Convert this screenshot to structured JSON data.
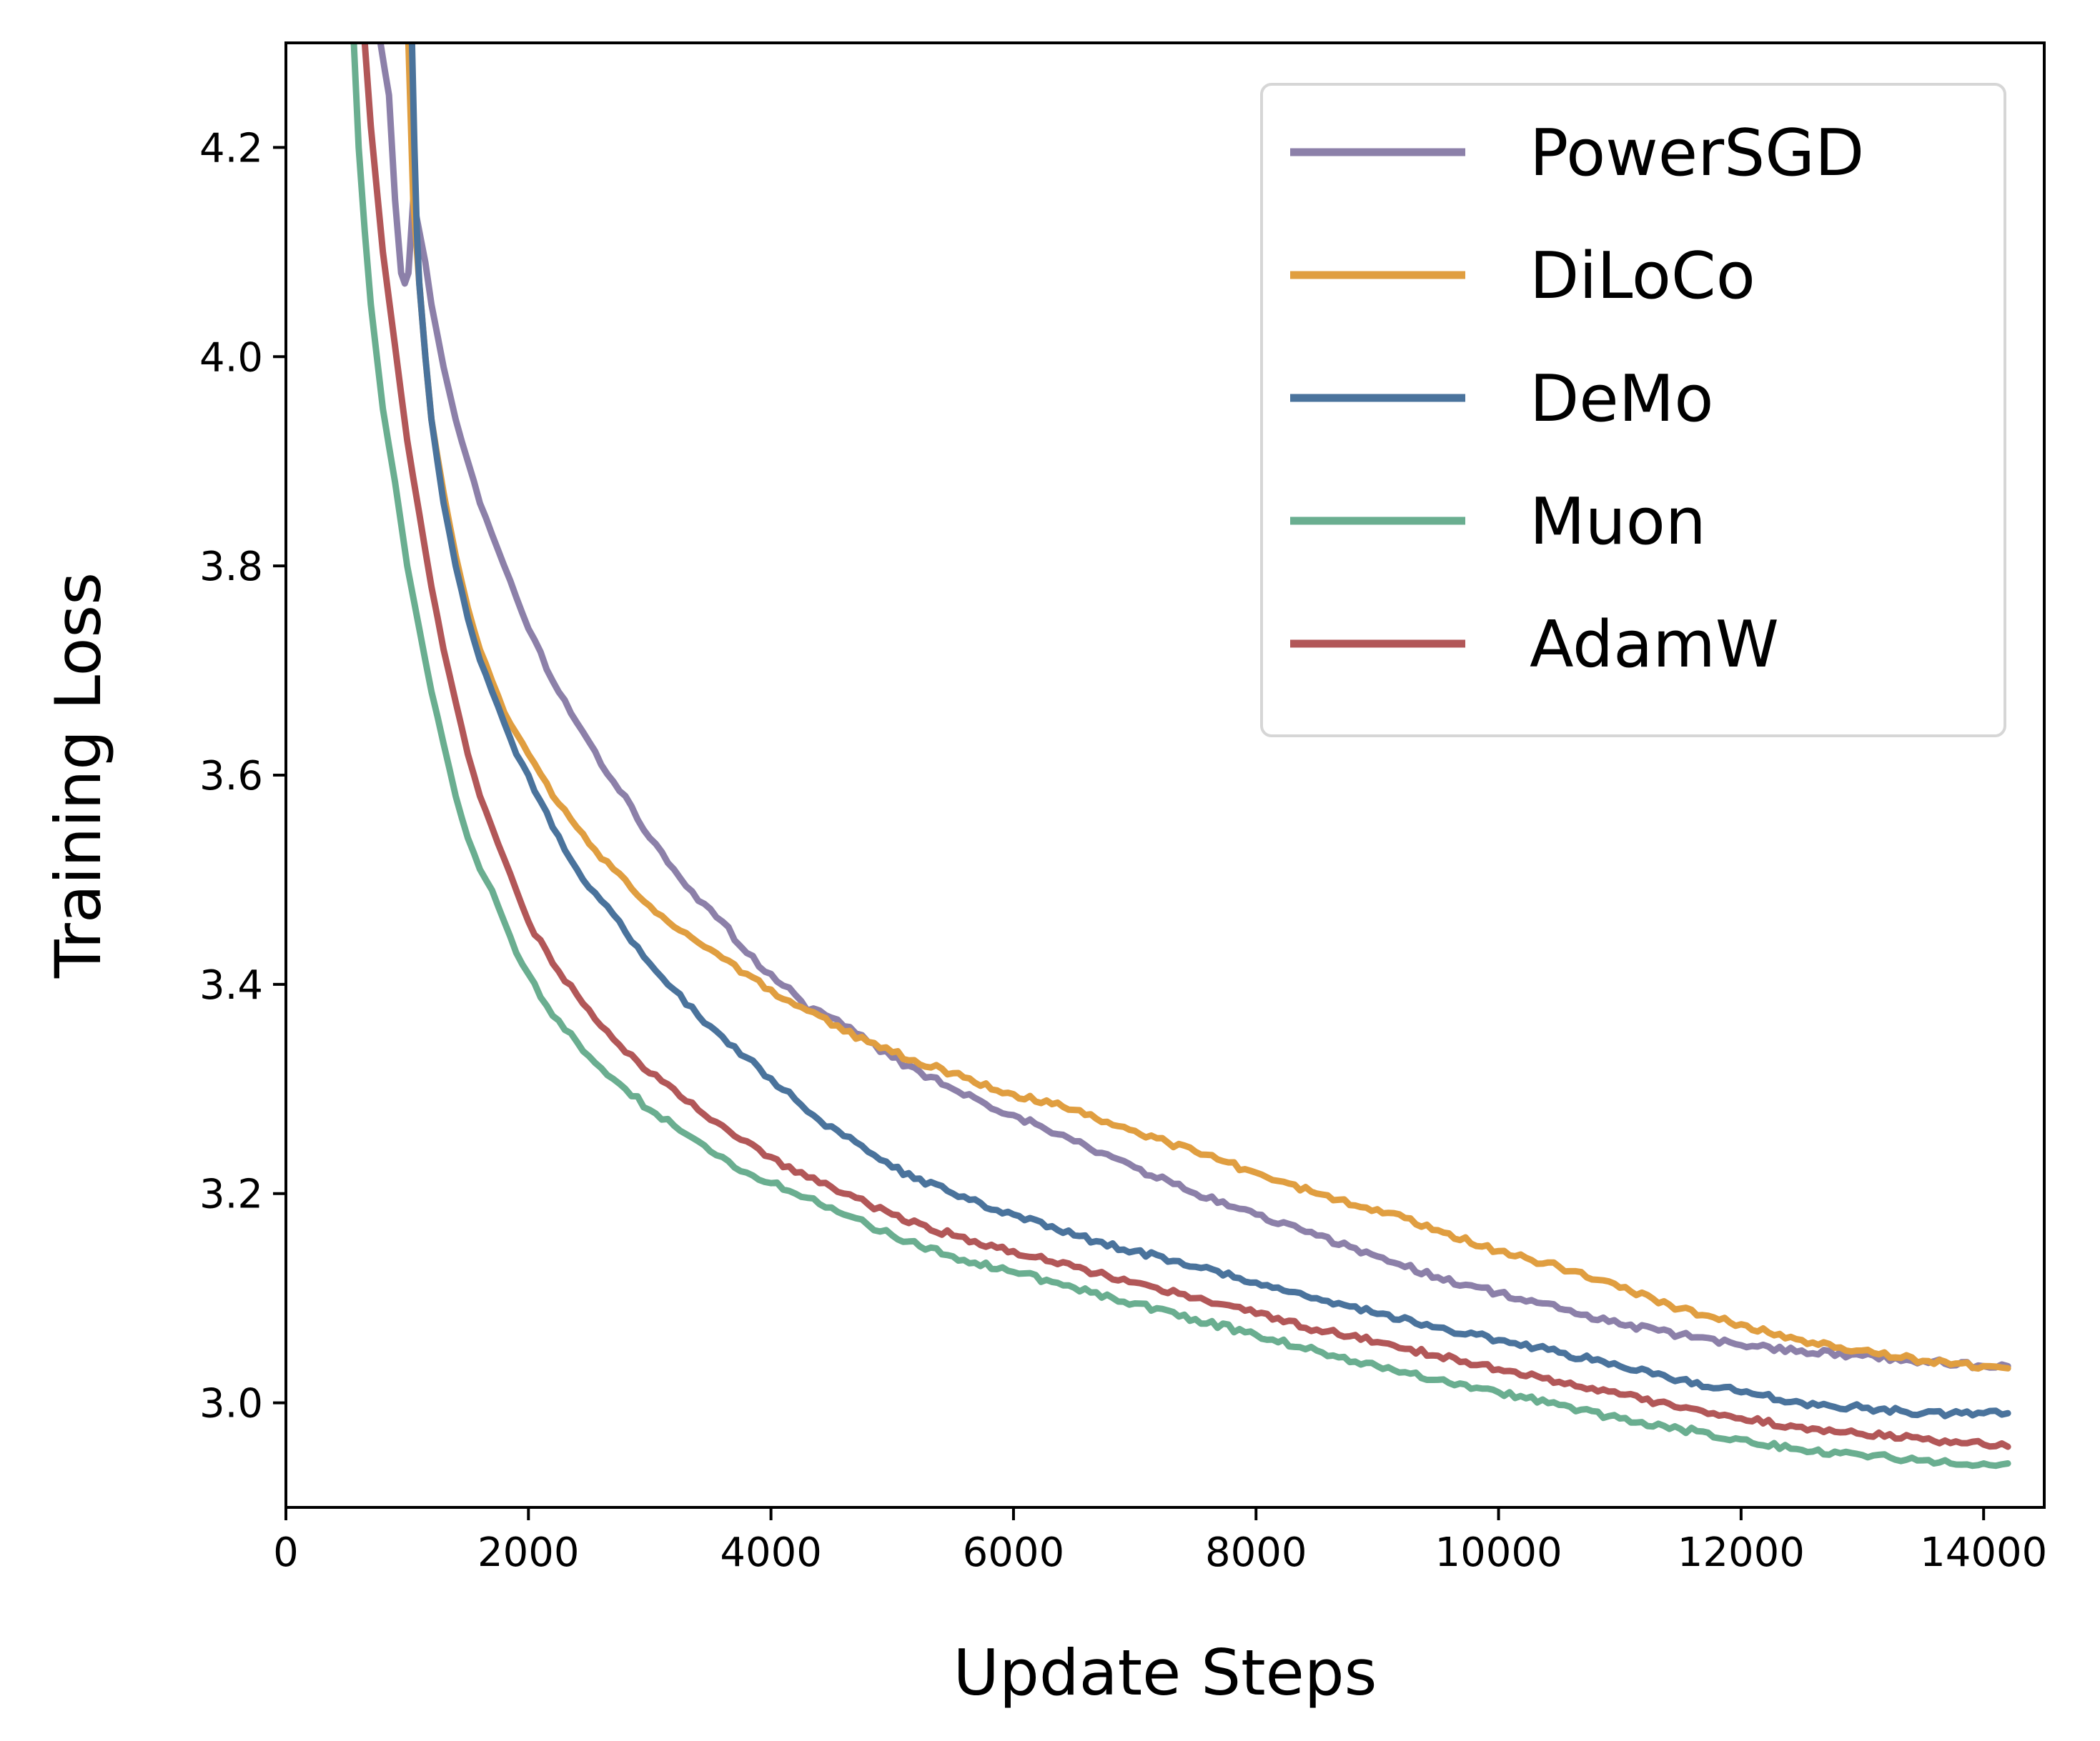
{
  "chart_data": {
    "type": "line",
    "title": "",
    "xlabel": "Update Steps",
    "ylabel": "Training Loss",
    "xlim": [
      0,
      14500
    ],
    "ylim": [
      2.9,
      4.3
    ],
    "xticks": [
      0,
      2000,
      4000,
      6000,
      8000,
      10000,
      12000,
      14000
    ],
    "yticks": [
      3.0,
      3.2,
      3.4,
      3.6,
      3.8,
      4.0,
      4.2
    ],
    "xtick_labels": [
      "0",
      "2000",
      "4000",
      "6000",
      "8000",
      "10000",
      "12000",
      "14000"
    ],
    "ytick_labels": [
      "3.0",
      "3.2",
      "3.4",
      "3.6",
      "3.8",
      "4.0",
      "4.2"
    ],
    "grid": false,
    "legend_position": "top-right",
    "series": [
      {
        "name": "PowerSGD",
        "color": "#8C80A9",
        "x": [
          780,
          850,
          900,
          950,
          980,
          1010,
          1050,
          1100,
          1150,
          1200,
          1300,
          1400,
          1500,
          1600,
          1700,
          1800,
          1900,
          2000,
          2200,
          2400,
          2600,
          2800,
          3000,
          3200,
          3400,
          3600,
          3800,
          4000,
          4200,
          4300,
          4400,
          4600,
          4800,
          5000,
          5500,
          6000,
          6500,
          7000,
          7500,
          8000,
          8500,
          9000,
          9500,
          10000,
          10500,
          11000,
          11500,
          12000,
          12500,
          13000,
          13500,
          14000,
          14200
        ],
        "y": [
          4.3,
          4.25,
          4.15,
          4.08,
          4.07,
          4.08,
          4.15,
          4.12,
          4.09,
          4.05,
          3.99,
          3.94,
          3.9,
          3.86,
          3.83,
          3.8,
          3.77,
          3.74,
          3.69,
          3.65,
          3.61,
          3.58,
          3.54,
          3.51,
          3.48,
          3.46,
          3.43,
          3.41,
          3.39,
          3.375,
          3.375,
          3.36,
          3.345,
          3.33,
          3.3,
          3.275,
          3.25,
          3.225,
          3.2,
          3.18,
          3.16,
          3.14,
          3.12,
          3.105,
          3.09,
          3.075,
          3.065,
          3.055,
          3.05,
          3.045,
          3.04,
          3.035,
          3.035
        ]
      },
      {
        "name": "DiLoCo",
        "color": "#E09E40",
        "x": [
          1010,
          1050,
          1100,
          1150,
          1200,
          1300,
          1400,
          1500,
          1600,
          1700,
          1800,
          1900,
          2000,
          2200,
          2400,
          2600,
          2800,
          3000,
          3200,
          3400,
          3600,
          3800,
          4000,
          4200,
          4400,
          4600,
          4800,
          5000,
          5500,
          6000,
          6500,
          7000,
          7500,
          8000,
          8500,
          9000,
          9500,
          10000,
          10500,
          11000,
          11500,
          12000,
          12500,
          13000,
          13500,
          14000,
          14200
        ],
        "y": [
          4.3,
          4.15,
          4.07,
          4.0,
          3.94,
          3.87,
          3.81,
          3.76,
          3.72,
          3.69,
          3.66,
          3.64,
          3.62,
          3.58,
          3.55,
          3.52,
          3.5,
          3.475,
          3.455,
          3.44,
          3.425,
          3.41,
          3.395,
          3.38,
          3.37,
          3.355,
          3.345,
          3.335,
          3.315,
          3.295,
          3.28,
          3.26,
          3.24,
          3.22,
          3.2,
          3.185,
          3.165,
          3.145,
          3.13,
          3.11,
          3.09,
          3.075,
          3.06,
          3.05,
          3.04,
          3.035,
          3.033
        ]
      },
      {
        "name": "DeMo",
        "color": "#4A739C",
        "x": [
          1040,
          1060,
          1080,
          1100,
          1150,
          1200,
          1300,
          1400,
          1500,
          1600,
          1700,
          1800,
          1900,
          2000,
          2200,
          2400,
          2600,
          2800,
          3000,
          3200,
          3400,
          3600,
          3800,
          4000,
          4200,
          4400,
          4600,
          4800,
          5000,
          5500,
          6000,
          6500,
          7000,
          7500,
          8000,
          8500,
          9000,
          9500,
          10000,
          10500,
          11000,
          11500,
          12000,
          12500,
          13000,
          13500,
          14000,
          14200
        ],
        "y": [
          4.3,
          4.2,
          4.12,
          4.07,
          4.0,
          3.94,
          3.86,
          3.8,
          3.75,
          3.71,
          3.68,
          3.65,
          3.62,
          3.6,
          3.55,
          3.51,
          3.48,
          3.45,
          3.42,
          3.395,
          3.37,
          3.35,
          3.33,
          3.31,
          3.29,
          3.27,
          3.255,
          3.24,
          3.225,
          3.2,
          3.18,
          3.16,
          3.145,
          3.13,
          3.115,
          3.1,
          3.085,
          3.072,
          3.06,
          3.048,
          3.035,
          3.022,
          3.01,
          3.0,
          2.995,
          2.99,
          2.99,
          2.99
        ]
      },
      {
        "name": "Muon",
        "color": "#6AAE90",
        "x": [
          560,
          600,
          650,
          700,
          750,
          800,
          900,
          1000,
          1100,
          1200,
          1300,
          1400,
          1500,
          1600,
          1700,
          1800,
          1900,
          2000,
          2200,
          2400,
          2600,
          2800,
          3000,
          3200,
          3400,
          3600,
          3800,
          4000,
          4200,
          4400,
          4600,
          4800,
          5000,
          5500,
          6000,
          6500,
          7000,
          7500,
          8000,
          8500,
          9000,
          9500,
          10000,
          10500,
          11000,
          11500,
          12000,
          12500,
          13000,
          13500,
          14000,
          14200
        ],
        "y": [
          4.3,
          4.2,
          4.12,
          4.05,
          4.0,
          3.95,
          3.88,
          3.8,
          3.74,
          3.68,
          3.63,
          3.58,
          3.54,
          3.51,
          3.49,
          3.46,
          3.43,
          3.41,
          3.37,
          3.345,
          3.32,
          3.3,
          3.28,
          3.265,
          3.25,
          3.235,
          3.22,
          3.21,
          3.2,
          3.19,
          3.18,
          3.17,
          3.16,
          3.14,
          3.125,
          3.11,
          3.095,
          3.08,
          3.065,
          3.05,
          3.035,
          3.022,
          3.01,
          2.998,
          2.985,
          2.975,
          2.965,
          2.955,
          2.95,
          2.945,
          2.942,
          2.942
        ]
      },
      {
        "name": "AdamW",
        "color": "#B25758",
        "x": [
          650,
          700,
          750,
          800,
          900,
          1000,
          1100,
          1200,
          1300,
          1400,
          1500,
          1600,
          1700,
          1800,
          1900,
          2000,
          2200,
          2400,
          2600,
          2800,
          3000,
          3200,
          3400,
          3600,
          3800,
          4000,
          4200,
          4400,
          4600,
          4800,
          5000,
          5500,
          6000,
          6500,
          7000,
          7500,
          8000,
          8500,
          9000,
          9500,
          10000,
          10500,
          11000,
          11500,
          12000,
          12500,
          13000,
          13500,
          14000,
          14200
        ],
        "y": [
          4.3,
          4.22,
          4.16,
          4.1,
          4.01,
          3.92,
          3.85,
          3.78,
          3.72,
          3.67,
          3.62,
          3.58,
          3.55,
          3.52,
          3.49,
          3.46,
          3.42,
          3.39,
          3.36,
          3.335,
          3.315,
          3.3,
          3.28,
          3.265,
          3.25,
          3.235,
          3.22,
          3.21,
          3.2,
          3.19,
          3.18,
          3.16,
          3.145,
          3.13,
          3.115,
          3.1,
          3.085,
          3.07,
          3.058,
          3.045,
          3.032,
          3.02,
          3.008,
          2.995,
          2.985,
          2.977,
          2.97,
          2.965,
          2.96,
          2.958
        ]
      }
    ]
  }
}
